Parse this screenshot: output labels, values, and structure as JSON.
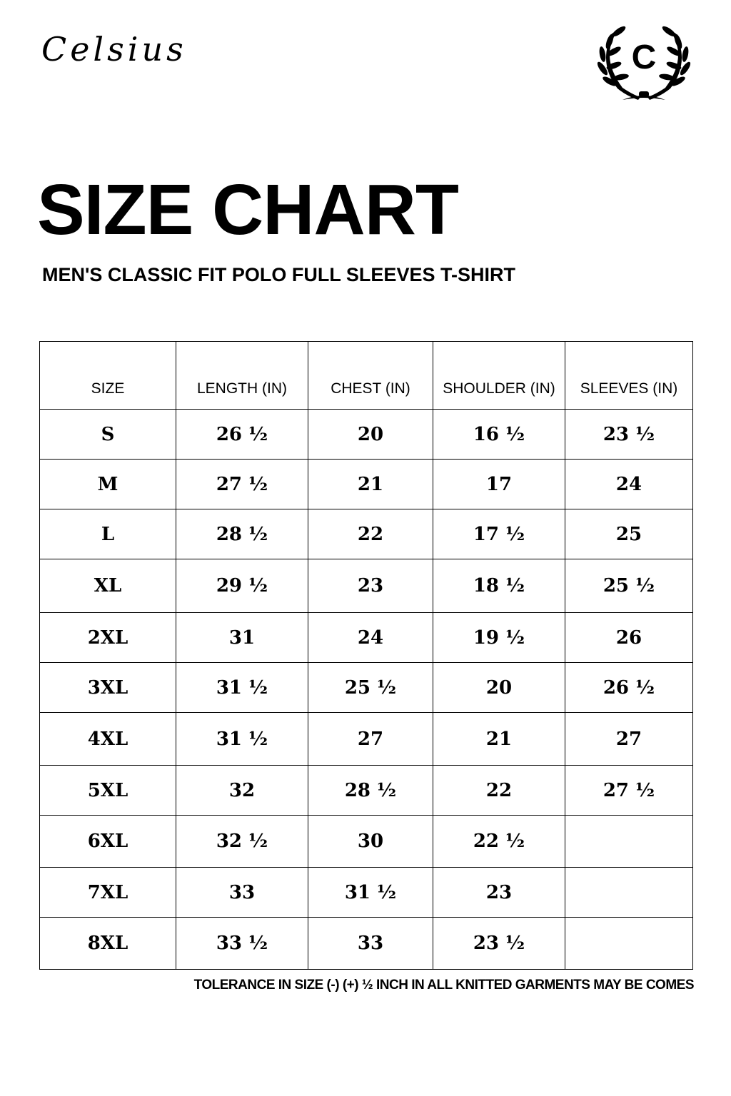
{
  "brand": {
    "name": "Celsius",
    "logo_letter": "C"
  },
  "title": "SIZE CHART",
  "subtitle": "MEN'S CLASSIC FIT POLO FULL SLEEVES T-SHIRT",
  "table": {
    "headers": [
      "SIZE",
      "LENGTH (IN)",
      "CHEST (IN)",
      "SHOULDER (IN)",
      "SLEEVES (IN)"
    ],
    "rows": [
      [
        "S",
        "26 ½",
        "20",
        "16 ½",
        "23 ½"
      ],
      [
        "M",
        "27 ½",
        "21",
        "17",
        "24"
      ],
      [
        "L",
        "28 ½",
        "22",
        "17 ½",
        "25"
      ],
      [
        "XL",
        "29 ½",
        "23",
        "18 ½",
        "25 ½"
      ],
      [
        "2XL",
        "31",
        "24",
        "19 ½",
        "26"
      ],
      [
        "3XL",
        "31 ½",
        "25 ½",
        "20",
        "26 ½"
      ],
      [
        "4XL",
        "31 ½",
        "27",
        "21",
        "27"
      ],
      [
        "5XL",
        "32",
        "28 ½",
        "22",
        "27 ½"
      ],
      [
        "6XL",
        "32 ½",
        "30",
        "22 ½",
        ""
      ],
      [
        "7XL",
        "33",
        "31 ½",
        "23",
        ""
      ],
      [
        "8XL",
        "33 ½",
        "33",
        "23 ½",
        ""
      ]
    ]
  },
  "note": "TOLERANCE IN SIZE (-) (+)  ½ INCH IN ALL KNITTED GARMENTS MAY BE COMES"
}
